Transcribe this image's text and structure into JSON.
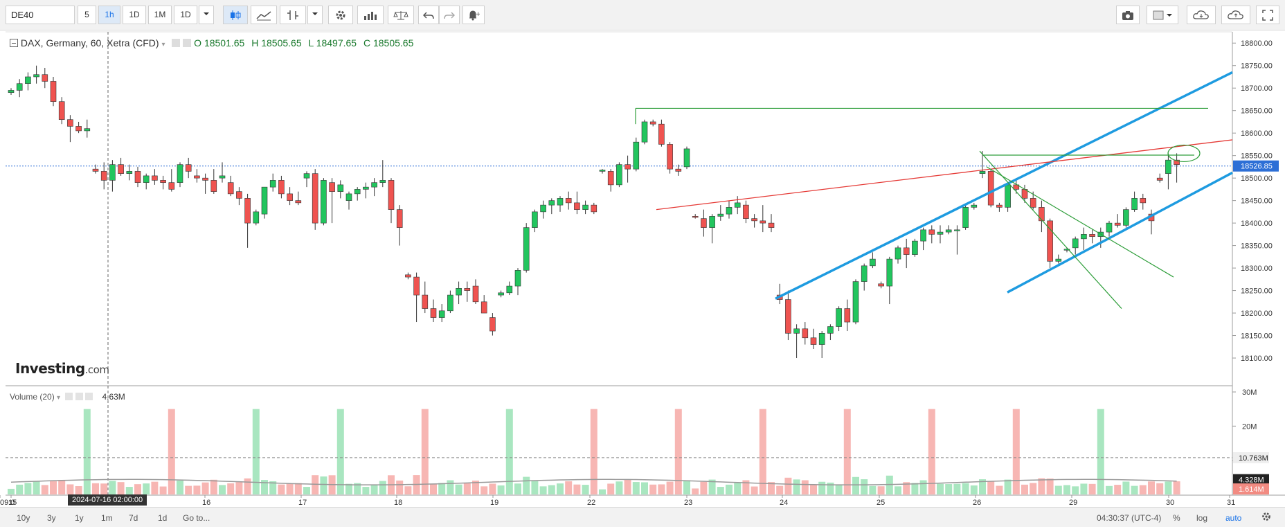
{
  "toolbar": {
    "symbol": "DE40",
    "intervals": [
      "5",
      "1h",
      "1D",
      "1M",
      "1D"
    ],
    "active_interval": "1h",
    "icons": [
      "candlestick-icon",
      "area-icon",
      "bars-icon",
      "chevron-down-icon",
      "gear-icon",
      "indicators-icon",
      "compare-icon",
      "undo-icon",
      "redo-icon",
      "alert-icon",
      "camera-icon",
      "layout-icon",
      "cloud-download-icon",
      "cloud-upload-icon",
      "fullscreen-icon"
    ]
  },
  "legend": {
    "title": "DAX, Germany, 60, Xetra (CFD)",
    "open": "O 18501.65",
    "high": "H 18505.65",
    "low": "L 18497.65",
    "close": "C 18505.65"
  },
  "volume_legend": {
    "label": "Volume (20)",
    "value": "4.63M"
  },
  "logo": {
    "brand": "Investing",
    "suffix": ".com"
  },
  "crosshair_time": "2024-07-16 02:00:00",
  "bottombar": {
    "ranges": [
      "10y",
      "3y",
      "1y",
      "1m",
      "7d",
      "1d"
    ],
    "goto": "Go to...",
    "clock": "04:30:37 (UTC-4)",
    "options": [
      "%",
      "log",
      "auto"
    ]
  },
  "colors": {
    "up": "#22c55e",
    "down": "#ef5350",
    "channel": "#1e9be0",
    "trend_red": "#e53935",
    "green_line": "#2e9e3a",
    "price_label": "#2d6fd6"
  },
  "chart_data": [
    {
      "type": "candlestick",
      "title": "DAX, Germany, 60, Xetra (CFD)",
      "x_tick_labels": [
        "15",
        "16",
        "17",
        "18",
        "19",
        "22",
        "23",
        "24",
        "25",
        "26",
        "29",
        "30",
        "31",
        "09:0"
      ],
      "y_tick_labels": [
        "18800.00",
        "18750.00",
        "18700.00",
        "18650.00",
        "18600.00",
        "18550.00",
        "18500.00",
        "18450.00",
        "18400.00",
        "18350.00",
        "18300.00",
        "18250.00",
        "18200.00",
        "18150.00",
        "18100.00"
      ],
      "ylim": [
        18040,
        18825
      ],
      "last_price": "18526.85",
      "last_price_value": 18526.85,
      "grid": false,
      "candles": [
        [
          18690,
          18700,
          18685,
          18695
        ],
        [
          18695,
          18720,
          18680,
          18710
        ],
        [
          18710,
          18735,
          18695,
          18725
        ],
        [
          18725,
          18750,
          18710,
          18730
        ],
        [
          18730,
          18745,
          18700,
          18715
        ],
        [
          18715,
          18725,
          18660,
          18670
        ],
        [
          18670,
          18680,
          18620,
          18630
        ],
        [
          18630,
          18640,
          18580,
          18615
        ],
        [
          18615,
          18625,
          18600,
          18605
        ],
        [
          18605,
          18630,
          18590,
          18610
        ],
        [
          18520,
          18530,
          18510,
          18515
        ],
        [
          18515,
          18535,
          18475,
          18495
        ],
        [
          18495,
          18540,
          18470,
          18530
        ],
        [
          18530,
          18545,
          18505,
          18510
        ],
        [
          18510,
          18530,
          18495,
          18515
        ],
        [
          18515,
          18525,
          18480,
          18490
        ],
        [
          18490,
          18510,
          18475,
          18505
        ],
        [
          18505,
          18520,
          18485,
          18495
        ],
        [
          18495,
          18505,
          18475,
          18490
        ],
        [
          18490,
          18520,
          18470,
          18475
        ],
        [
          18490,
          18535,
          18480,
          18530
        ],
        [
          18530,
          18545,
          18500,
          18515
        ],
        [
          18505,
          18520,
          18490,
          18500
        ],
        [
          18500,
          18510,
          18465,
          18495
        ],
        [
          18495,
          18520,
          18465,
          18470
        ],
        [
          18500,
          18535,
          18490,
          18505
        ],
        [
          18490,
          18505,
          18460,
          18465
        ],
        [
          18470,
          18480,
          18440,
          18455
        ],
        [
          18455,
          18465,
          18345,
          18400
        ],
        [
          18400,
          18430,
          18395,
          18425
        ],
        [
          18420,
          18480,
          18410,
          18480
        ],
        [
          18480,
          18510,
          18470,
          18495
        ],
        [
          18495,
          18505,
          18455,
          18465
        ],
        [
          18465,
          18480,
          18440,
          18450
        ],
        [
          18450,
          18470,
          18440,
          18445
        ],
        [
          18500,
          18515,
          18480,
          18510
        ],
        [
          18510,
          18520,
          18385,
          18400
        ],
        [
          18400,
          18500,
          18395,
          18495
        ],
        [
          18490,
          18500,
          18400,
          18470
        ],
        [
          18470,
          18495,
          18455,
          18485
        ],
        [
          18450,
          18470,
          18430,
          18465
        ],
        [
          18465,
          18480,
          18450,
          18475
        ],
        [
          18475,
          18490,
          18455,
          18480
        ],
        [
          18480,
          18500,
          18460,
          18490
        ],
        [
          18490,
          18540,
          18480,
          18495
        ],
        [
          18495,
          18500,
          18400,
          18430
        ],
        [
          18430,
          18440,
          18350,
          18390
        ],
        [
          18285,
          18290,
          18275,
          18280
        ],
        [
          18280,
          18290,
          18180,
          18240
        ],
        [
          18240,
          18270,
          18200,
          18210
        ],
        [
          18210,
          18230,
          18180,
          18190
        ],
        [
          18190,
          18220,
          18180,
          18205
        ],
        [
          18205,
          18250,
          18200,
          18240
        ],
        [
          18240,
          18270,
          18220,
          18255
        ],
        [
          18255,
          18270,
          18225,
          18250
        ],
        [
          18260,
          18275,
          18220,
          18225
        ],
        [
          18225,
          18240,
          18200,
          18200
        ],
        [
          18190,
          18200,
          18150,
          18160
        ],
        [
          18240,
          18250,
          18235,
          18245
        ],
        [
          18245,
          18270,
          18240,
          18260
        ],
        [
          18260,
          18300,
          18240,
          18295
        ],
        [
          18295,
          18400,
          18290,
          18390
        ],
        [
          18390,
          18430,
          18380,
          18425
        ],
        [
          18425,
          18450,
          18410,
          18440
        ],
        [
          18440,
          18455,
          18420,
          18450
        ],
        [
          18440,
          18460,
          18425,
          18455
        ],
        [
          18455,
          18470,
          18430,
          18445
        ],
        [
          18445,
          18470,
          18420,
          18430
        ],
        [
          18430,
          18450,
          18420,
          18440
        ],
        [
          18440,
          18445,
          18420,
          18425
        ],
        [
          18515,
          18520,
          18510,
          18518
        ],
        [
          18515,
          18520,
          18470,
          18485
        ],
        [
          18485,
          18535,
          18480,
          18530
        ],
        [
          18530,
          18550,
          18490,
          18520
        ],
        [
          18520,
          18590,
          18515,
          18580
        ],
        [
          18580,
          18630,
          18575,
          18625
        ],
        [
          18625,
          18630,
          18615,
          18620
        ],
        [
          18620,
          18630,
          18570,
          18575
        ],
        [
          18575,
          18580,
          18510,
          18520
        ],
        [
          18520,
          18530,
          18505,
          18515
        ],
        [
          18525,
          18570,
          18520,
          18565
        ],
        [
          18415,
          18420,
          18410,
          18413
        ],
        [
          18410,
          18430,
          18370,
          18390
        ],
        [
          18390,
          18420,
          18355,
          18415
        ],
        [
          18415,
          18440,
          18405,
          18420
        ],
        [
          18420,
          18450,
          18410,
          18435
        ],
        [
          18435,
          18460,
          18420,
          18445
        ],
        [
          18440,
          18450,
          18400,
          18410
        ],
        [
          18410,
          18420,
          18390,
          18405
        ],
        [
          18405,
          18440,
          18380,
          18400
        ],
        [
          18400,
          18420,
          18380,
          18390
        ],
        [
          18240,
          18265,
          18220,
          18230
        ],
        [
          18230,
          18250,
          18140,
          18155
        ],
        [
          18155,
          18175,
          18100,
          18165
        ],
        [
          18165,
          18180,
          18130,
          18145
        ],
        [
          18145,
          18165,
          18120,
          18130
        ],
        [
          18130,
          18160,
          18100,
          18155
        ],
        [
          18155,
          18175,
          18140,
          18170
        ],
        [
          18170,
          18215,
          18160,
          18210
        ],
        [
          18210,
          18230,
          18160,
          18180
        ],
        [
          18180,
          18275,
          18175,
          18270
        ],
        [
          18270,
          18310,
          18250,
          18305
        ],
        [
          18305,
          18335,
          18300,
          18320
        ],
        [
          18265,
          18270,
          18255,
          18260
        ],
        [
          18260,
          18325,
          18220,
          18320
        ],
        [
          18320,
          18350,
          18310,
          18345
        ],
        [
          18345,
          18365,
          18300,
          18330
        ],
        [
          18330,
          18365,
          18325,
          18360
        ],
        [
          18360,
          18390,
          18340,
          18385
        ],
        [
          18385,
          18395,
          18355,
          18375
        ],
        [
          18375,
          18395,
          18355,
          18380
        ],
        [
          18380,
          18395,
          18375,
          18385
        ],
        [
          18385,
          18395,
          18330,
          18385
        ],
        [
          18390,
          18440,
          18385,
          18435
        ],
        [
          18435,
          18445,
          18430,
          18440
        ],
        [
          18510,
          18560,
          18500,
          18515
        ],
        [
          18515,
          18520,
          18435,
          18440
        ],
        [
          18440,
          18445,
          18425,
          18435
        ],
        [
          18435,
          18490,
          18425,
          18485
        ],
        [
          18485,
          18500,
          18465,
          18475
        ],
        [
          18475,
          18485,
          18445,
          18455
        ],
        [
          18455,
          18470,
          18430,
          18435
        ],
        [
          18435,
          18450,
          18380,
          18405
        ],
        [
          18405,
          18410,
          18300,
          18315
        ],
        [
          18315,
          18330,
          18310,
          18320
        ],
        [
          18340,
          18345,
          18335,
          18342
        ],
        [
          18345,
          18370,
          18330,
          18365
        ],
        [
          18365,
          18390,
          18340,
          18375
        ],
        [
          18375,
          18385,
          18355,
          18370
        ],
        [
          18370,
          18390,
          18345,
          18380
        ],
        [
          18380,
          18405,
          18370,
          18400
        ],
        [
          18400,
          18420,
          18390,
          18395
        ],
        [
          18395,
          18435,
          18390,
          18430
        ],
        [
          18430,
          18470,
          18425,
          18455
        ],
        [
          18455,
          18465,
          18430,
          18445
        ],
        [
          18420,
          18430,
          18375,
          18405
        ],
        [
          18500,
          18510,
          18490,
          18495
        ],
        [
          18510,
          18555,
          18475,
          18540
        ],
        [
          18540,
          18555,
          18490,
          18530
        ]
      ],
      "overlays": {
        "channel_lines": [
          [
            [
              18232,
              0
            ],
            [
              18735,
              1
            ]
          ],
          [
            [
              18246,
              0
            ],
            [
              18512,
              1
            ]
          ],
          [
            [
              18280,
              0
            ],
            [
              18557,
              1
            ]
          ]
        ],
        "red_trend": [
          18430,
          18585
        ],
        "resistance": 18655,
        "level_2": 18551
      }
    },
    {
      "type": "bar",
      "title": "Volume (20)",
      "y_tick_labels": [
        "30M",
        "20M",
        "10M"
      ],
      "ylim": [
        0,
        30
      ],
      "markers": {
        "ma": "10.763M",
        "ma_value": 10.763,
        "sma": "4.328M",
        "sma_value": 4.328,
        "last": "1.614M",
        "last_value": 1.614
      }
    }
  ]
}
